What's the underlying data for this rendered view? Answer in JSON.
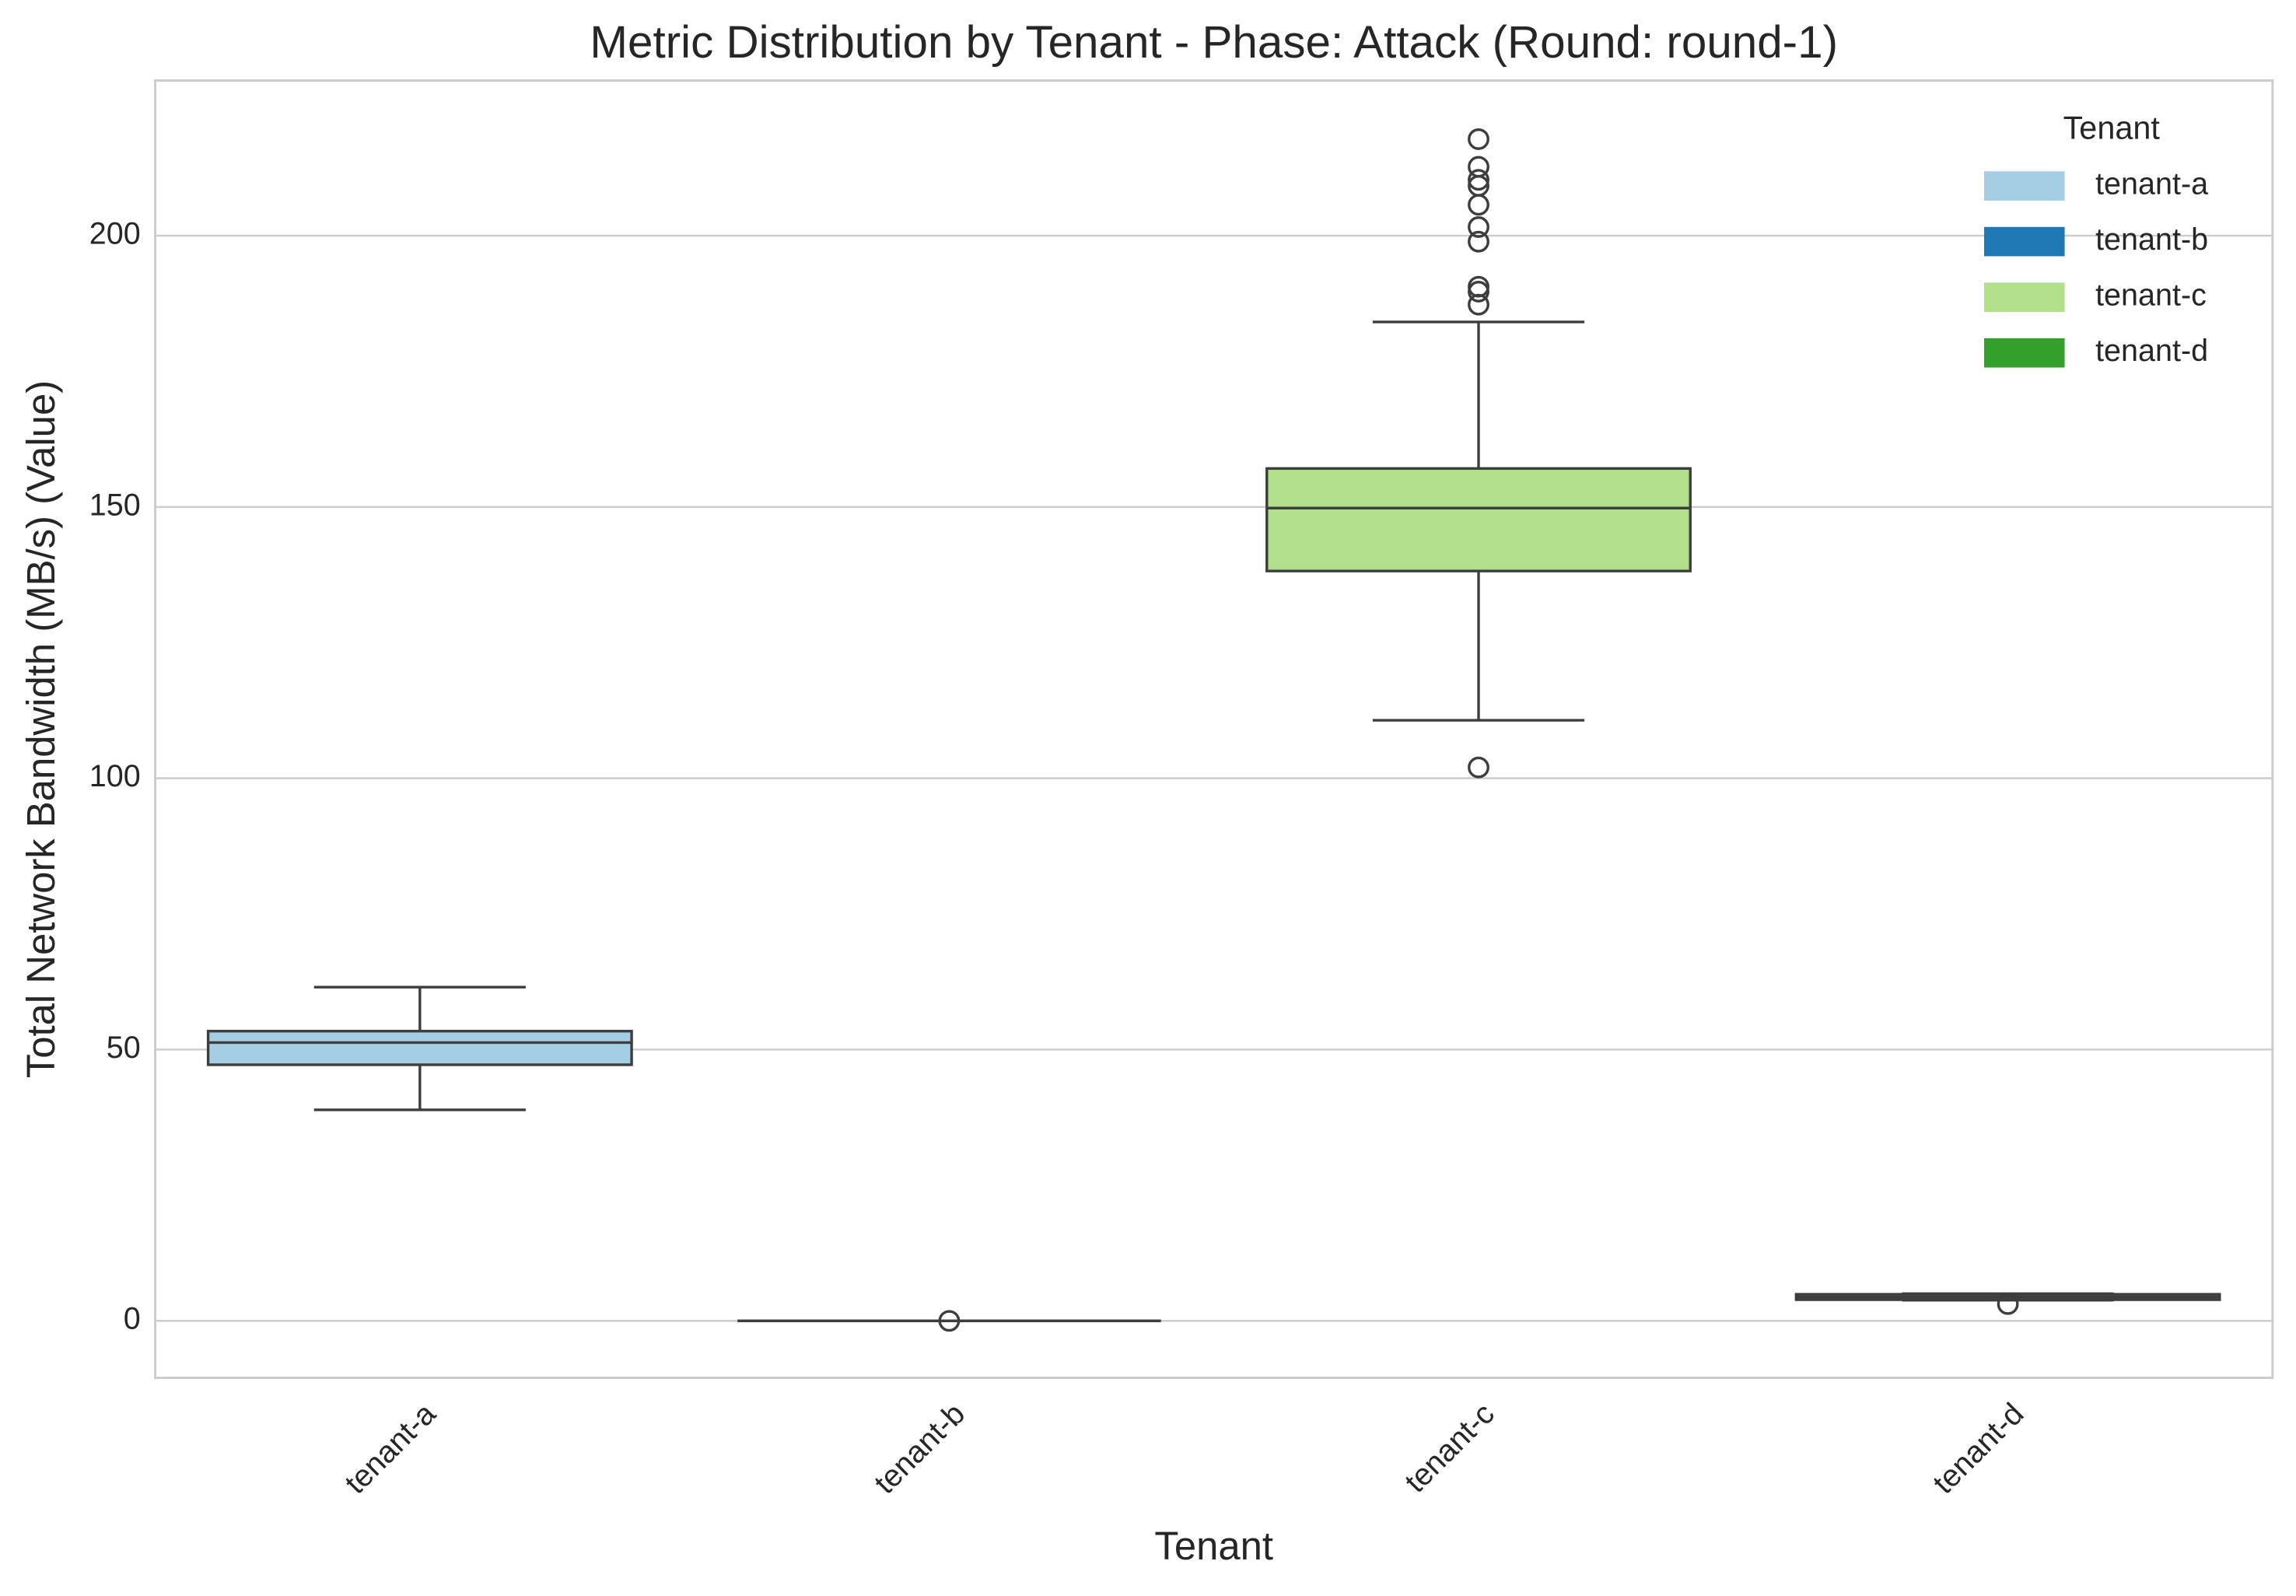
{
  "chart_data": {
    "type": "box",
    "title": "Metric Distribution by Tenant - Phase: Attack (Round: round-1)",
    "x_label": "Tenant",
    "y_label": "Total Network Bandwidth (MB/s) (Value)",
    "categories": [
      "tenant-a",
      "tenant-b",
      "tenant-c",
      "tenant-d"
    ],
    "series": [
      {
        "name": "tenant-a",
        "color": "#a6cee3",
        "whislo": 38.9,
        "q1": 47.2,
        "med": 51.3,
        "q3": 53.4,
        "whishi": 61.5,
        "fliers": []
      },
      {
        "name": "tenant-b",
        "color": "#1f78b4",
        "whislo": 0,
        "q1": 0,
        "med": 0,
        "q3": 0,
        "whishi": 0,
        "fliers": [
          0
        ]
      },
      {
        "name": "tenant-c",
        "color": "#b2df8a",
        "whislo": 110.7,
        "q1": 138.2,
        "med": 149.8,
        "q3": 157.1,
        "whishi": 184.1,
        "fliers": [
          217.8,
          212.7,
          210.3,
          209.2,
          205.7,
          201.6,
          198.9,
          190.6,
          189.7,
          187.3,
          102.0
        ]
      },
      {
        "name": "tenant-d",
        "color": "#33a02c",
        "whislo": 3.8,
        "q1": 3.9,
        "med": 4.4,
        "q3": 4.9,
        "whishi": 5.0,
        "fliers": [
          3.1
        ]
      }
    ],
    "legend_title": "Tenant",
    "legend_position": "upper right",
    "ylim": [
      -10.5,
      228.6
    ],
    "yticks": [
      0,
      50,
      100,
      150,
      200
    ],
    "grid": true
  }
}
